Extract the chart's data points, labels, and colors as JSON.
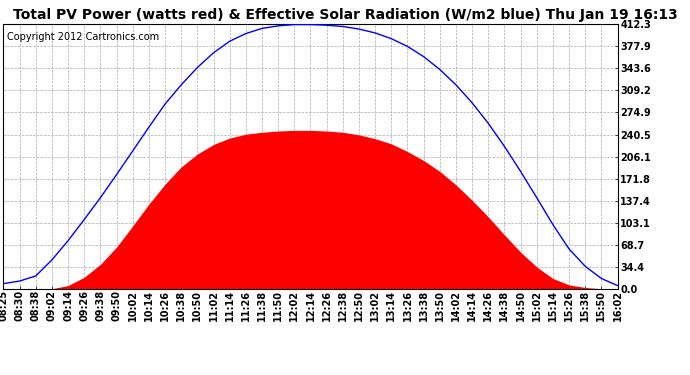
{
  "title": "Total PV Power (watts red) & Effective Solar Radiation (W/m2 blue) Thu Jan 19 16:13",
  "copyright": "Copyright 2012 Cartronics.com",
  "yticks": [
    0.0,
    34.4,
    68.7,
    103.1,
    137.4,
    171.8,
    206.1,
    240.5,
    274.9,
    309.2,
    343.6,
    377.9,
    412.3
  ],
  "ymax": 412.3,
  "ymin": 0.0,
  "x_labels": [
    "08:25",
    "08:30",
    "08:38",
    "09:02",
    "09:14",
    "09:26",
    "09:38",
    "09:50",
    "10:02",
    "10:14",
    "10:26",
    "10:38",
    "10:50",
    "11:02",
    "11:14",
    "11:26",
    "11:38",
    "11:50",
    "12:02",
    "12:14",
    "12:26",
    "12:38",
    "12:50",
    "13:02",
    "13:14",
    "13:26",
    "13:38",
    "13:50",
    "14:02",
    "14:14",
    "14:26",
    "14:38",
    "14:50",
    "15:02",
    "15:14",
    "15:26",
    "15:38",
    "15:50",
    "16:02"
  ],
  "red_fill_color": "#FF0000",
  "blue_line_color": "#0000FF",
  "bg_color": "#FFFFFF",
  "plot_bg_color": "#FFFFFF",
  "grid_color": "#888888",
  "title_fontsize": 10,
  "copyright_fontsize": 7,
  "tick_fontsize": 7,
  "blue_values": [
    8,
    12,
    20,
    45,
    75,
    108,
    142,
    178,
    215,
    252,
    288,
    318,
    345,
    368,
    386,
    398,
    406,
    410,
    412,
    412,
    411,
    409,
    405,
    399,
    390,
    378,
    362,
    342,
    318,
    290,
    258,
    222,
    183,
    142,
    100,
    62,
    35,
    16,
    5
  ],
  "red_values": [
    0,
    0,
    0,
    0,
    5,
    18,
    38,
    65,
    98,
    132,
    163,
    190,
    210,
    225,
    235,
    241,
    244,
    246,
    247,
    247,
    246,
    244,
    240,
    234,
    226,
    214,
    200,
    183,
    162,
    138,
    112,
    84,
    57,
    34,
    16,
    6,
    2,
    0,
    0
  ]
}
